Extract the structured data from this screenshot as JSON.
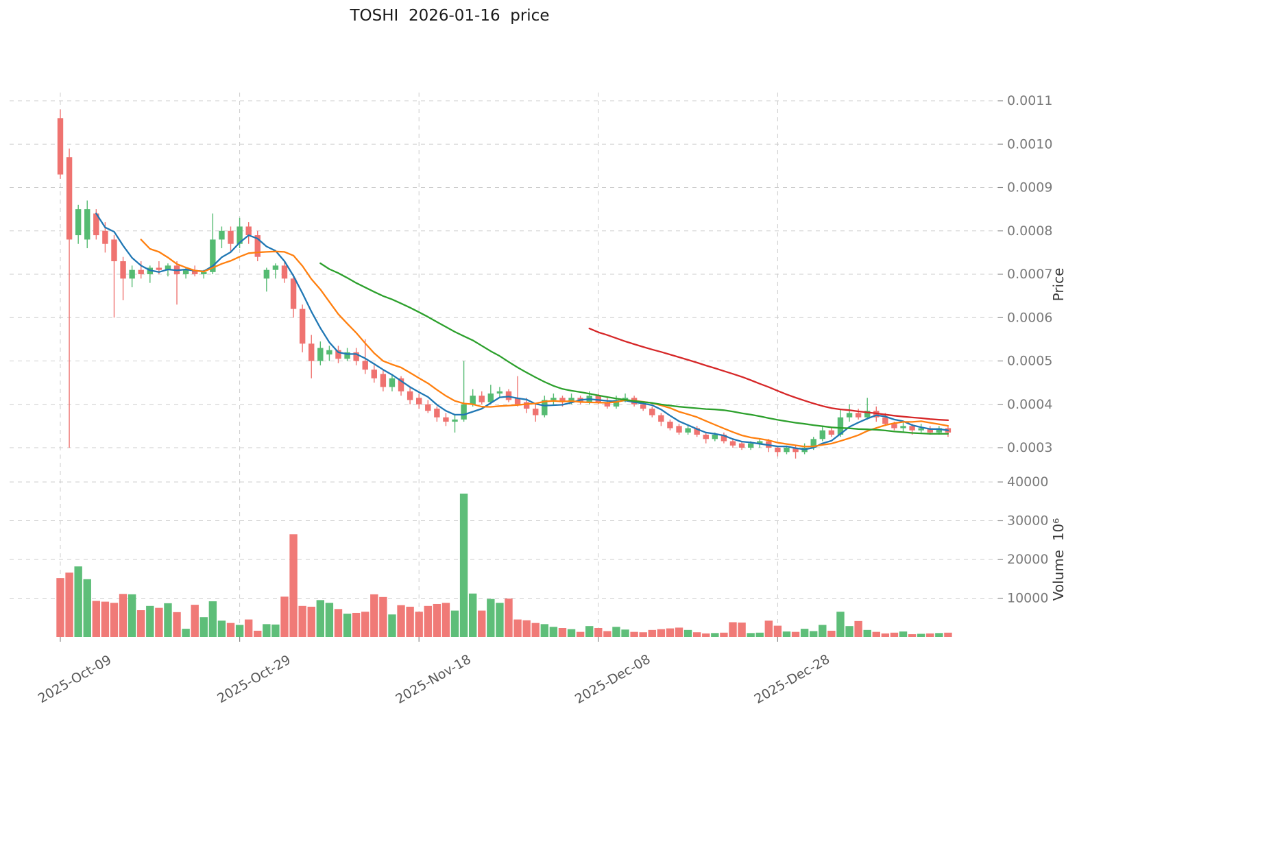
{
  "title": "TOSHI  2026-01-16  price",
  "axes": {
    "price_label": "Price",
    "volume_label": "Volume  10⁶",
    "price_ticks": [
      "0.0003",
      "0.0004",
      "0.0005",
      "0.0006",
      "0.0007",
      "0.0008",
      "0.0009",
      "0.0010",
      "0.0011"
    ],
    "volume_ticks": [
      "10000",
      "20000",
      "30000",
      "40000"
    ],
    "x_ticks": [
      {
        "i": 0,
        "label": "2025-Oct-09"
      },
      {
        "i": 20,
        "label": "2025-Oct-29"
      },
      {
        "i": 40,
        "label": "2025-Nov-18"
      },
      {
        "i": 60,
        "label": "2025-Dec-08"
      },
      {
        "i": 80,
        "label": "2025-Dec-28"
      }
    ]
  },
  "colors": {
    "up": "#55bb72",
    "down": "#ef7370",
    "grid": "#cccccc",
    "tick": "#8a8a8a"
  },
  "chart_data": {
    "type": "candlestick+volume",
    "title": "TOSHI  2026-01-16  price",
    "xlabel": "",
    "ylabel_price": "Price",
    "ylabel_volume": "Volume  10⁶",
    "grid": true,
    "price_ylim": [
      0.000255,
      0.00112
    ],
    "volume_ylim": [
      0,
      42000
    ],
    "x": [
      "2025-10-09",
      "2025-10-10",
      "2025-10-11",
      "2025-10-12",
      "2025-10-13",
      "2025-10-14",
      "2025-10-15",
      "2025-10-16",
      "2025-10-17",
      "2025-10-18",
      "2025-10-19",
      "2025-10-20",
      "2025-10-21",
      "2025-10-22",
      "2025-10-23",
      "2025-10-24",
      "2025-10-25",
      "2025-10-26",
      "2025-10-27",
      "2025-10-28",
      "2025-10-29",
      "2025-10-30",
      "2025-10-31",
      "2025-11-01",
      "2025-11-02",
      "2025-11-03",
      "2025-11-04",
      "2025-11-05",
      "2025-11-06",
      "2025-11-07",
      "2025-11-08",
      "2025-11-09",
      "2025-11-10",
      "2025-11-11",
      "2025-11-12",
      "2025-11-13",
      "2025-11-14",
      "2025-11-15",
      "2025-11-16",
      "2025-11-17",
      "2025-11-18",
      "2025-11-19",
      "2025-11-20",
      "2025-11-21",
      "2025-11-22",
      "2025-11-23",
      "2025-11-24",
      "2025-11-25",
      "2025-11-26",
      "2025-11-27",
      "2025-11-28",
      "2025-11-29",
      "2025-11-30",
      "2025-12-01",
      "2025-12-02",
      "2025-12-03",
      "2025-12-04",
      "2025-12-05",
      "2025-12-06",
      "2025-12-07",
      "2025-12-08",
      "2025-12-09",
      "2025-12-10",
      "2025-12-11",
      "2025-12-12",
      "2025-12-13",
      "2025-12-14",
      "2025-12-15",
      "2025-12-16",
      "2025-12-17",
      "2025-12-18",
      "2025-12-19",
      "2025-12-20",
      "2025-12-21",
      "2025-12-22",
      "2025-12-23",
      "2025-12-24",
      "2025-12-25",
      "2025-12-26",
      "2025-12-27",
      "2025-12-28",
      "2025-12-29",
      "2025-12-30",
      "2025-12-31",
      "2026-01-01",
      "2026-01-02",
      "2026-01-03",
      "2026-01-04",
      "2026-01-05",
      "2026-01-06",
      "2026-01-07",
      "2026-01-08",
      "2026-01-09",
      "2026-01-10",
      "2026-01-11",
      "2026-01-12",
      "2026-01-13",
      "2026-01-14",
      "2026-01-15",
      "2026-01-16"
    ],
    "ohlc": [
      [
        0.00106,
        0.00108,
        0.00092,
        0.00093
      ],
      [
        0.00097,
        0.00099,
        0.0003,
        0.00078
      ],
      [
        0.00079,
        0.00086,
        0.00077,
        0.00085
      ],
      [
        0.00078,
        0.00087,
        0.00076,
        0.00085
      ],
      [
        0.00084,
        0.00085,
        0.00078,
        0.00079
      ],
      [
        0.0008,
        0.00082,
        0.00075,
        0.00077
      ],
      [
        0.00078,
        0.00079,
        0.0006,
        0.00073
      ],
      [
        0.00073,
        0.00074,
        0.00064,
        0.00069
      ],
      [
        0.00069,
        0.00072,
        0.00067,
        0.00071
      ],
      [
        0.00071,
        0.00073,
        0.00069,
        0.0007
      ],
      [
        0.0007,
        0.00072,
        0.00068,
        0.000715
      ],
      [
        0.000715,
        0.00073,
        0.0007,
        0.00071
      ],
      [
        0.00071,
        0.000725,
        0.000695,
        0.00072
      ],
      [
        0.00072,
        0.00073,
        0.00063,
        0.0007
      ],
      [
        0.0007,
        0.000715,
        0.00069,
        0.00071
      ],
      [
        0.00071,
        0.00072,
        0.000695,
        0.0007
      ],
      [
        0.0007,
        0.00071,
        0.00069,
        0.000705
      ],
      [
        0.000705,
        0.00084,
        0.0007,
        0.00078
      ],
      [
        0.00078,
        0.00081,
        0.00076,
        0.0008
      ],
      [
        0.0008,
        0.00081,
        0.00075,
        0.00077
      ],
      [
        0.00077,
        0.00083,
        0.00076,
        0.00081
      ],
      [
        0.00081,
        0.00082,
        0.00077,
        0.00079
      ],
      [
        0.00079,
        0.0008,
        0.00073,
        0.00074
      ],
      [
        0.00069,
        0.000715,
        0.00066,
        0.00071
      ],
      [
        0.00071,
        0.000725,
        0.00069,
        0.00072
      ],
      [
        0.00072,
        0.00073,
        0.00068,
        0.00069
      ],
      [
        0.00069,
        0.0007,
        0.0006,
        0.00062
      ],
      [
        0.00062,
        0.00063,
        0.00052,
        0.00054
      ],
      [
        0.00054,
        0.00056,
        0.00046,
        0.0005
      ],
      [
        0.0005,
        0.000545,
        0.00049,
        0.00053
      ],
      [
        0.000515,
        0.000535,
        0.0005,
        0.000525
      ],
      [
        0.000525,
        0.000535,
        0.000495,
        0.000505
      ],
      [
        0.000505,
        0.00053,
        0.0005,
        0.00052
      ],
      [
        0.00052,
        0.00053,
        0.00049,
        0.0005
      ],
      [
        0.0005,
        0.00055,
        0.00047,
        0.00048
      ],
      [
        0.00048,
        0.00049,
        0.00045,
        0.00046
      ],
      [
        0.00047,
        0.00048,
        0.00043,
        0.00044
      ],
      [
        0.00044,
        0.00047,
        0.00043,
        0.00046
      ],
      [
        0.00046,
        0.000465,
        0.00042,
        0.00043
      ],
      [
        0.00043,
        0.00044,
        0.0004,
        0.00041
      ],
      [
        0.000415,
        0.000425,
        0.00039,
        0.0004
      ],
      [
        0.0004,
        0.00041,
        0.00038,
        0.000385
      ],
      [
        0.00039,
        0.000395,
        0.00036,
        0.00037
      ],
      [
        0.00037,
        0.00038,
        0.00035,
        0.00036
      ],
      [
        0.00036,
        0.000375,
        0.000335,
        0.000365
      ],
      [
        0.000365,
        0.0005,
        0.00036,
        0.0004
      ],
      [
        0.0004,
        0.000435,
        0.000395,
        0.00042
      ],
      [
        0.00042,
        0.00043,
        0.0004,
        0.000405
      ],
      [
        0.000405,
        0.000445,
        0.0004,
        0.000425
      ],
      [
        0.000425,
        0.00044,
        0.000415,
        0.00043
      ],
      [
        0.00043,
        0.000435,
        0.000405,
        0.00041
      ],
      [
        0.000415,
        0.000465,
        0.000395,
        0.0004
      ],
      [
        0.000405,
        0.000415,
        0.00038,
        0.00039
      ],
      [
        0.00039,
        0.0004,
        0.00036,
        0.000375
      ],
      [
        0.000375,
        0.00042,
        0.00037,
        0.00041
      ],
      [
        0.00041,
        0.000425,
        0.0004,
        0.000415
      ],
      [
        0.000415,
        0.00042,
        0.000395,
        0.000405
      ],
      [
        0.000405,
        0.000425,
        0.0004,
        0.000415
      ],
      [
        0.000415,
        0.00042,
        0.0004,
        0.000405
      ],
      [
        0.000405,
        0.00043,
        0.0004,
        0.00042
      ],
      [
        0.00042,
        0.000425,
        0.0004,
        0.000405
      ],
      [
        0.000405,
        0.000415,
        0.00039,
        0.000395
      ],
      [
        0.000395,
        0.00042,
        0.00039,
        0.00041
      ],
      [
        0.00041,
        0.000425,
        0.000405,
        0.000415
      ],
      [
        0.000415,
        0.00042,
        0.000395,
        0.0004
      ],
      [
        0.0004,
        0.000405,
        0.000385,
        0.00039
      ],
      [
        0.00039,
        0.000395,
        0.00037,
        0.000375
      ],
      [
        0.000375,
        0.00038,
        0.00035,
        0.00036
      ],
      [
        0.00036,
        0.000365,
        0.00034,
        0.000345
      ],
      [
        0.00035,
        0.000355,
        0.00033,
        0.000335
      ],
      [
        0.000335,
        0.00035,
        0.00033,
        0.000345
      ],
      [
        0.000345,
        0.00035,
        0.000325,
        0.00033
      ],
      [
        0.00033,
        0.000335,
        0.00031,
        0.00032
      ],
      [
        0.00032,
        0.000335,
        0.000315,
        0.00033
      ],
      [
        0.00033,
        0.000335,
        0.00031,
        0.000315
      ],
      [
        0.000315,
        0.00032,
        0.0003,
        0.000305
      ],
      [
        0.00031,
        0.000315,
        0.000295,
        0.0003
      ],
      [
        0.0003,
        0.000315,
        0.000295,
        0.00031
      ],
      [
        0.00031,
        0.00032,
        0.0003,
        0.000315
      ],
      [
        0.000315,
        0.00032,
        0.00029,
        0.0003
      ],
      [
        0.0003,
        0.000305,
        0.00028,
        0.00029
      ],
      [
        0.00029,
        0.000305,
        0.000285,
        0.0003
      ],
      [
        0.0003,
        0.000305,
        0.000275,
        0.00029
      ],
      [
        0.00029,
        0.00031,
        0.000285,
        0.0003
      ],
      [
        0.0003,
        0.000325,
        0.000295,
        0.00032
      ],
      [
        0.00032,
        0.00035,
        0.000315,
        0.00034
      ],
      [
        0.00034,
        0.000345,
        0.000325,
        0.00033
      ],
      [
        0.00033,
        0.00039,
        0.000325,
        0.00037
      ],
      [
        0.00037,
        0.0004,
        0.00036,
        0.00038
      ],
      [
        0.00038,
        0.00039,
        0.000365,
        0.00037
      ],
      [
        0.00037,
        0.000415,
        0.000365,
        0.000385
      ],
      [
        0.000385,
        0.000395,
        0.00036,
        0.00037
      ],
      [
        0.00037,
        0.00038,
        0.00035,
        0.000355
      ],
      [
        0.000355,
        0.00036,
        0.00034,
        0.000345
      ],
      [
        0.000345,
        0.00036,
        0.000335,
        0.00035
      ],
      [
        0.00035,
        0.000355,
        0.00033,
        0.00034
      ],
      [
        0.00034,
        0.000355,
        0.000335,
        0.000345
      ],
      [
        0.000345,
        0.00035,
        0.00033,
        0.000335
      ],
      [
        0.000335,
        0.00035,
        0.00033,
        0.000345
      ],
      [
        0.000345,
        0.00035,
        0.000325,
        0.000335
      ]
    ],
    "volume": [
      15200,
      16600,
      18200,
      14900,
      9300,
      9100,
      8800,
      11100,
      11000,
      6900,
      8000,
      7500,
      8700,
      6400,
      2100,
      8300,
      5100,
      9200,
      4200,
      3600,
      3100,
      4500,
      1600,
      3300,
      3200,
      10400,
      26500,
      8000,
      7800,
      9500,
      8800,
      7200,
      6000,
      6200,
      6500,
      11000,
      10300,
      5800,
      8200,
      7800,
      6500,
      8000,
      8500,
      8800,
      6800,
      37000,
      11200,
      6800,
      9800,
      8800,
      9900,
      4500,
      4300,
      3600,
      3300,
      2600,
      2300,
      2000,
      1300,
      2800,
      2300,
      1500,
      2600,
      1900,
      1300,
      1200,
      1800,
      2000,
      2200,
      2400,
      1800,
      1200,
      900,
      1000,
      1100,
      3800,
      3700,
      1000,
      1100,
      4200,
      2900,
      1400,
      1300,
      2100,
      1500,
      3100,
      1600,
      6500,
      2800,
      4100,
      1800,
      1300,
      900,
      1100,
      1400,
      700,
      800,
      900,
      1000,
      1100
    ],
    "moving_averages": [
      {
        "name": "ma5",
        "window": 5,
        "color": "#1f77b4"
      },
      {
        "name": "ma10",
        "window": 10,
        "color": "#ff7f0e"
      },
      {
        "name": "ma30",
        "window": 30,
        "color": "#2ca02c"
      },
      {
        "name": "ma60",
        "window": 60,
        "color": "#d62728"
      }
    ]
  }
}
